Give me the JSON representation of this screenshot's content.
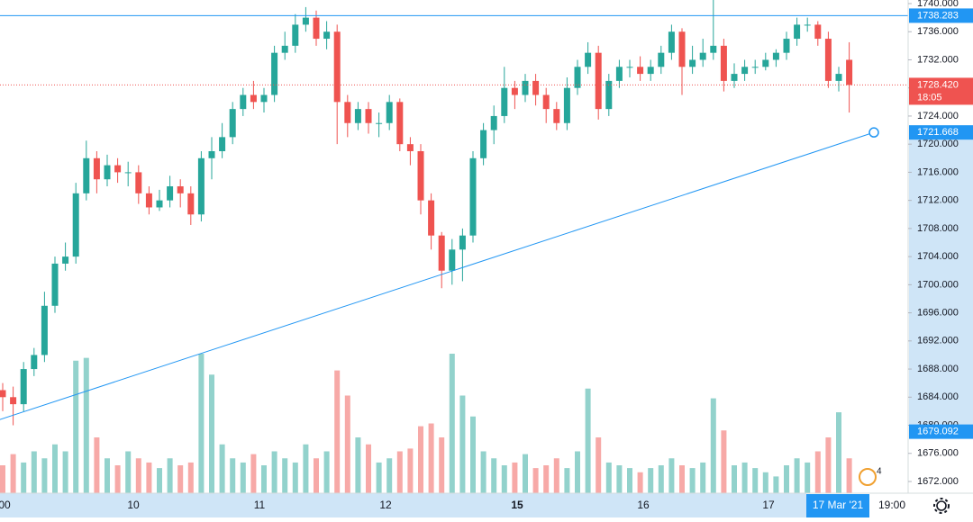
{
  "chart_data": {
    "type": "candlestick",
    "open": [
      1685,
      1684,
      1683,
      1688,
      1690,
      1697,
      1703,
      1704,
      1713,
      1718,
      1715,
      1717,
      1716,
      1716,
      1713,
      1711,
      1712,
      1714,
      1713,
      1710,
      1718,
      1719,
      1721,
      1725,
      1727,
      1726,
      1727,
      1733,
      1734,
      1737,
      1738,
      1735,
      1736,
      1726,
      1723,
      1725,
      1723,
      1723,
      1726,
      1720,
      1719,
      1712,
      1707,
      1702,
      1705,
      1707,
      1718,
      1722,
      1724,
      1728,
      1727,
      1729,
      1727,
      1725,
      1723,
      1728,
      1731,
      1733,
      1725,
      1729,
      1731,
      1731,
      1730,
      1731,
      1733,
      1736,
      1731,
      1732,
      1733,
      1734,
      1729,
      1730,
      1731,
      1731,
      1732,
      1733,
      1735,
      1737,
      1737,
      1735,
      1729,
      1732
    ],
    "high": [
      1686,
      1685.5,
      1689,
      1691,
      1699,
      1704,
      1706,
      1714.5,
      1720.5,
      1719,
      1718.5,
      1718,
      1717.5,
      1717,
      1714,
      1713.5,
      1715.5,
      1715,
      1714,
      1719,
      1721,
      1723,
      1726,
      1728,
      1729,
      1728,
      1734,
      1736,
      1738.5,
      1739.5,
      1739,
      1737.5,
      1737,
      1727,
      1726,
      1726,
      1724.5,
      1727,
      1726.5,
      1721,
      1720,
      1713,
      1707.5,
      1706.5,
      1708,
      1719,
      1723,
      1725.5,
      1731,
      1729,
      1730,
      1730,
      1728,
      1726,
      1729.5,
      1732,
      1734.5,
      1734,
      1730,
      1732,
      1732,
      1732.5,
      1732,
      1734,
      1737,
      1736.5,
      1734,
      1735,
      1741,
      1735,
      1731.5,
      1732,
      1732,
      1733,
      1733.5,
      1736,
      1738,
      1738,
      1737.5,
      1736,
      1731,
      1734.5
    ],
    "low": [
      1682,
      1680,
      1682,
      1687,
      1689,
      1696,
      1702,
      1703,
      1712,
      1713,
      1714,
      1714.5,
      1714,
      1711.5,
      1710,
      1710.5,
      1711,
      1711,
      1708.5,
      1709,
      1715,
      1718,
      1720,
      1724,
      1725,
      1724.5,
      1726,
      1732,
      1733,
      1736,
      1734,
      1733.5,
      1720,
      1721,
      1722,
      1721.5,
      1721,
      1722,
      1719,
      1717,
      1710,
      1705,
      1699.5,
      1700,
      1700.5,
      1706,
      1717,
      1720,
      1723,
      1725,
      1726,
      1725.5,
      1723,
      1722,
      1722,
      1727,
      1730,
      1723.5,
      1724,
      1728,
      1729.5,
      1729,
      1729,
      1730,
      1732,
      1727,
      1730,
      1731,
      1732,
      1727.5,
      1728,
      1729,
      1730,
      1730.5,
      1731,
      1732,
      1734,
      1736,
      1734,
      1728,
      1727.5,
      1724.5
    ],
    "close": [
      1684,
      1683,
      1688,
      1690,
      1697,
      1703,
      1704,
      1713,
      1718,
      1715,
      1717,
      1716,
      1716,
      1713,
      1711,
      1712,
      1714,
      1713,
      1710,
      1718,
      1719,
      1721,
      1725,
      1727,
      1726,
      1727,
      1733,
      1734,
      1737,
      1738,
      1735,
      1736,
      1726,
      1723,
      1725,
      1723,
      1723,
      1726,
      1720,
      1719,
      1712,
      1707,
      1702,
      1705,
      1707,
      1718,
      1722,
      1724,
      1728,
      1727,
      1729,
      1727,
      1725,
      1723,
      1728,
      1731,
      1733,
      1725,
      1729,
      1731,
      1731,
      1730,
      1731,
      1733,
      1736,
      1731,
      1732,
      1733,
      1734,
      1729,
      1730,
      1731,
      1731,
      1732,
      1733,
      1735,
      1737,
      1737,
      1735,
      1729,
      1730,
      1728.42
    ],
    "volume": [
      20,
      28,
      22,
      30,
      25,
      35,
      30,
      95,
      97,
      40,
      25,
      20,
      30,
      25,
      22,
      18,
      25,
      20,
      22,
      100,
      85,
      35,
      25,
      22,
      28,
      20,
      30,
      25,
      22,
      35,
      25,
      30,
      88,
      70,
      40,
      35,
      22,
      25,
      30,
      32,
      48,
      50,
      40,
      100,
      70,
      55,
      30,
      25,
      20,
      22,
      28,
      18,
      20,
      25,
      18,
      30,
      75,
      40,
      22,
      20,
      18,
      15,
      18,
      20,
      25,
      20,
      18,
      22,
      68,
      45,
      20,
      22,
      18,
      15,
      12,
      20,
      25,
      22,
      30,
      40,
      58,
      25
    ],
    "volume_ylim": [
      0,
      100
    ],
    "up_color": "#26a69a",
    "down_color": "#ef5350",
    "ylim": [
      1672,
      1740
    ],
    "yticks": [
      {
        "value": 1740,
        "label": "1740.000"
      },
      {
        "value": 1736,
        "label": "1736.000"
      },
      {
        "value": 1732,
        "label": "1732.000"
      },
      {
        "value": 1728,
        "label": "1728.000"
      },
      {
        "value": 1724,
        "label": "1724.000"
      },
      {
        "value": 1720,
        "label": "1720.000"
      },
      {
        "value": 1716,
        "label": "1716.000"
      },
      {
        "value": 1712,
        "label": "1712.000"
      },
      {
        "value": 1708,
        "label": "1708.000"
      },
      {
        "value": 1704,
        "label": "1704.000"
      },
      {
        "value": 1700,
        "label": "1700.000"
      },
      {
        "value": 1696,
        "label": "1696.000"
      },
      {
        "value": 1692,
        "label": "1692.000"
      },
      {
        "value": 1688,
        "label": "1688.000"
      },
      {
        "value": 1684,
        "label": "1684.000"
      },
      {
        "value": 1680,
        "label": "1680.000"
      },
      {
        "value": 1676,
        "label": "1676.000"
      },
      {
        "value": 1672,
        "label": "1672.000"
      }
    ],
    "grid": false,
    "horizontal_line": 1738.283,
    "trendline_start": 1679.092,
    "trendline_end": 1721.668,
    "last_price": {
      "value": 1728.42,
      "label": "1728.420"
    },
    "countdown": "18:05",
    "time_labels": [
      "00",
      "10",
      "11",
      "12",
      "15",
      "16",
      "17"
    ],
    "crosshair_time": "17 Mar '21",
    "last_time": "19:00",
    "badge": "4"
  }
}
